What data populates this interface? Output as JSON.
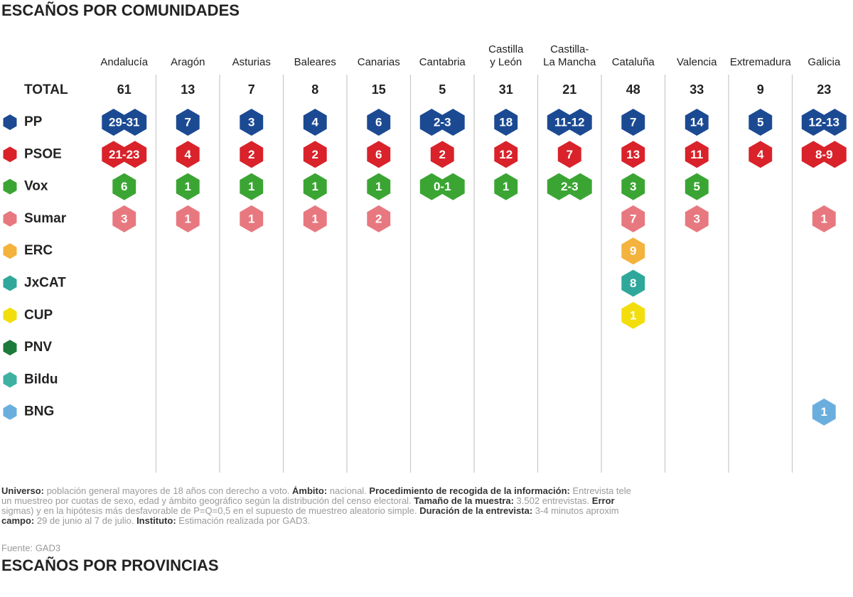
{
  "title": "ESCAÑOS POR COMUNIDADES",
  "columns": [
    [
      "Andalucía"
    ],
    [
      "Aragón"
    ],
    [
      "Asturias"
    ],
    [
      "Baleares"
    ],
    [
      "Canarias"
    ],
    [
      "Cantabria"
    ],
    [
      "Castilla",
      "y León"
    ],
    [
      "Castilla-",
      "La Mancha"
    ],
    [
      "Cataluña"
    ],
    [
      "Valencia"
    ],
    [
      "Extremadura"
    ],
    [
      "Galicia"
    ]
  ],
  "total_label": "TOTAL",
  "totals": [
    61,
    13,
    7,
    8,
    15,
    5,
    31,
    21,
    48,
    33,
    9,
    23
  ],
  "parties": [
    {
      "name": "PP",
      "color": "#1b4a93",
      "seats": [
        "29-31",
        7,
        3,
        4,
        6,
        "2-3",
        18,
        "11-12",
        7,
        14,
        5,
        "12-13"
      ]
    },
    {
      "name": "PSOE",
      "color": "#d9222a",
      "seats": [
        "21-23",
        4,
        2,
        2,
        6,
        2,
        12,
        7,
        13,
        11,
        4,
        "8-9"
      ]
    },
    {
      "name": "Vox",
      "color": "#3ba534",
      "seats": [
        6,
        1,
        1,
        1,
        1,
        "0-1",
        1,
        "2-3",
        3,
        5,
        null,
        null
      ]
    },
    {
      "name": "Sumar",
      "color": "#e8787f",
      "seats": [
        3,
        1,
        1,
        1,
        2,
        null,
        null,
        null,
        7,
        3,
        null,
        1
      ]
    },
    {
      "name": "ERC",
      "color": "#f3b33d",
      "seats": [
        null,
        null,
        null,
        null,
        null,
        null,
        null,
        null,
        9,
        null,
        null,
        null
      ]
    },
    {
      "name": "JxCAT",
      "color": "#2fa89b",
      "seats": [
        null,
        null,
        null,
        null,
        null,
        null,
        null,
        null,
        8,
        null,
        null,
        null
      ]
    },
    {
      "name": "CUP",
      "color": "#f2de0c",
      "seats": [
        null,
        null,
        null,
        null,
        null,
        null,
        null,
        null,
        1,
        null,
        null,
        null
      ]
    },
    {
      "name": "PNV",
      "color": "#1d7a3a",
      "seats": [
        null,
        null,
        null,
        null,
        null,
        null,
        null,
        null,
        null,
        null,
        null,
        null
      ]
    },
    {
      "name": "Bildu",
      "color": "#3eb2a1",
      "seats": [
        null,
        null,
        null,
        null,
        null,
        null,
        null,
        null,
        null,
        null,
        null,
        null
      ]
    },
    {
      "name": "BNG",
      "color": "#6aaede",
      "seats": [
        null,
        null,
        null,
        null,
        null,
        null,
        null,
        null,
        null,
        null,
        null,
        1
      ]
    }
  ],
  "footnote": [
    [
      {
        "text": "Universo:",
        "bold": true
      },
      {
        "text": " población general mayores de 18 años con derecho a voto. ",
        "bold": false
      },
      {
        "text": "Ámbito:",
        "bold": true
      },
      {
        "text": " nacional. ",
        "bold": false
      },
      {
        "text": "Procedimiento de recogida de la información:",
        "bold": true
      },
      {
        "text": " Entrevista tele",
        "bold": false
      }
    ],
    [
      {
        "text": "un muestreo por cuotas de sexo, edad y ámbito geográfico según la distribución del censo electoral. ",
        "bold": false
      },
      {
        "text": "Tamaño de la muestra:",
        "bold": true
      },
      {
        "text": " 3.502 entrevistas. ",
        "bold": false
      },
      {
        "text": "Error",
        "bold": true
      }
    ],
    [
      {
        "text": "sigmas) y en la hipótesis más desfavorable de P=Q=0,5 en el supuesto de muestreo aleatorio simple. ",
        "bold": false
      },
      {
        "text": "Duración de la entrevista:",
        "bold": true
      },
      {
        "text": " 3-4 minutos aproxim",
        "bold": false
      }
    ],
    [
      {
        "text": "campo:",
        "bold": true
      },
      {
        "text": " 29 de junio al 7 de julio. ",
        "bold": false
      },
      {
        "text": "Instituto:",
        "bold": true
      },
      {
        "text": " Estimación realizada por GAD3.",
        "bold": false
      }
    ]
  ],
  "source": "Fuente: GAD3",
  "subtitle": "ESCAÑOS POR PROVINCIAS"
}
